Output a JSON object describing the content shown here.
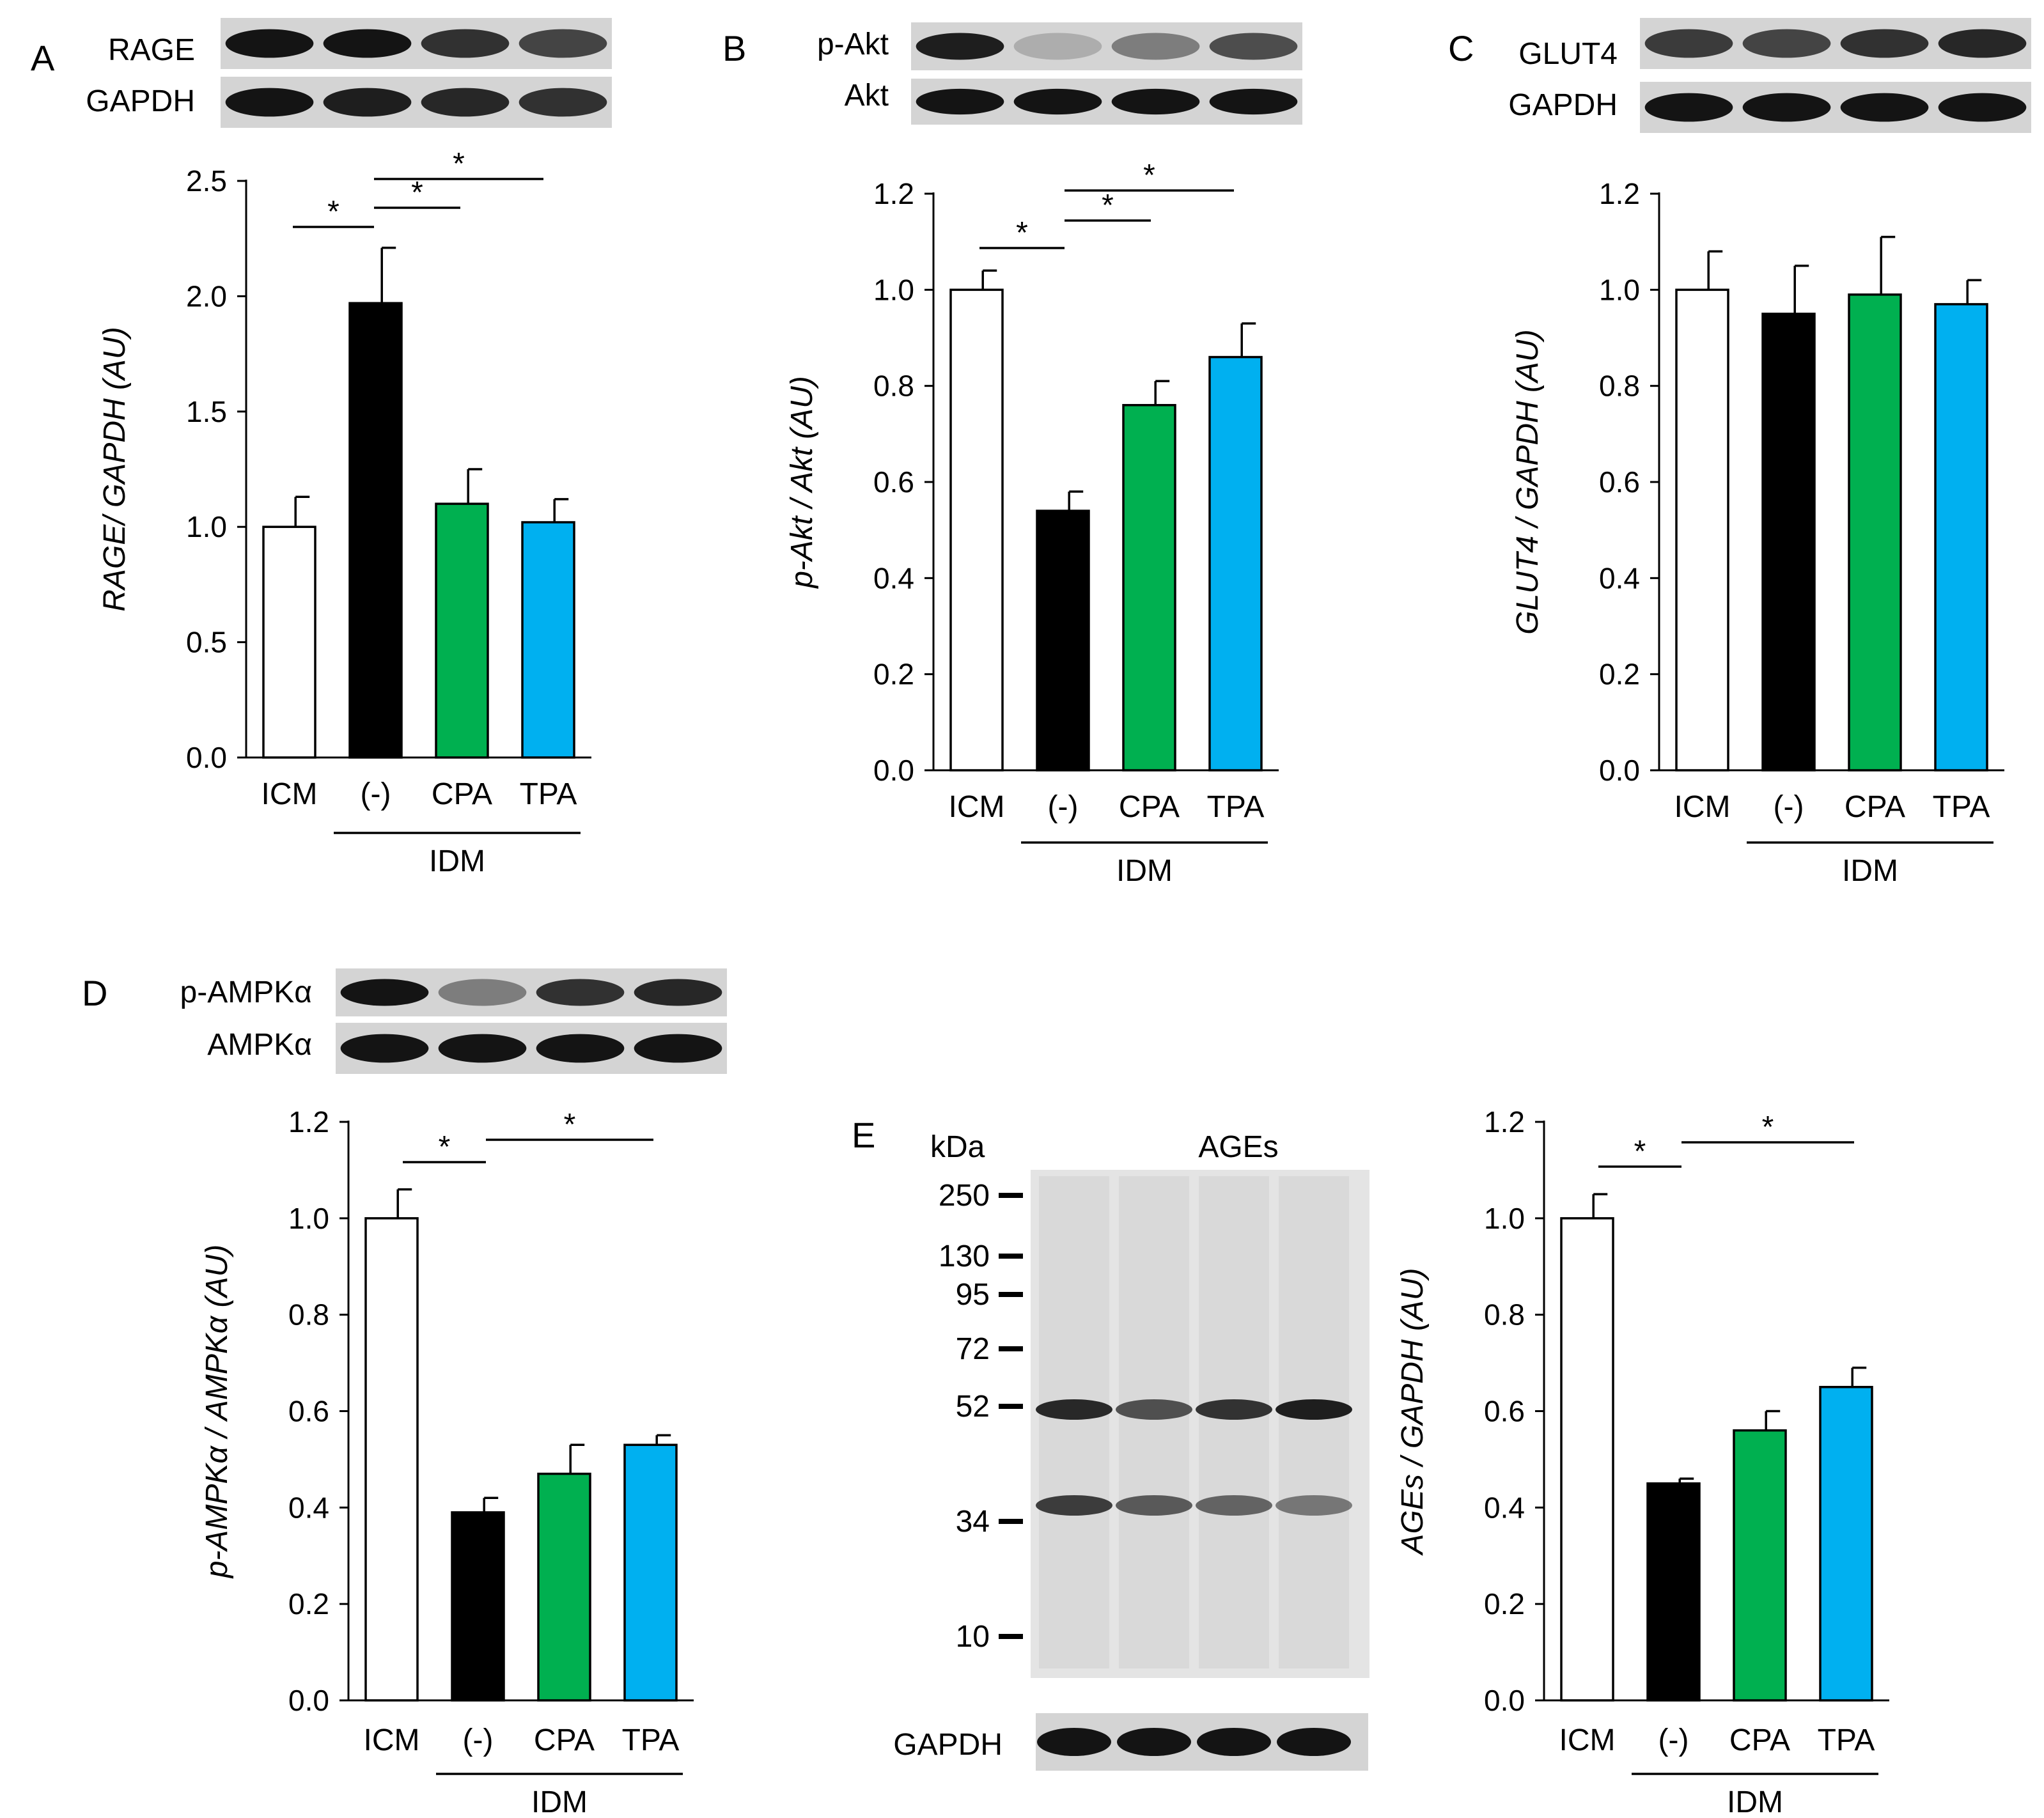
{
  "chart_data": [
    {
      "type": "bar",
      "panel": "A",
      "blots": [
        "RAGE",
        "GAPDH"
      ],
      "ylabel": "RAGE/ GAPDH (AU)",
      "categories": [
        "ICM",
        "(-)",
        "CPA",
        "TPA"
      ],
      "group_label": "IDM",
      "values": [
        1.0,
        1.97,
        1.1,
        1.02
      ],
      "errors": [
        0.13,
        0.24,
        0.15,
        0.1
      ],
      "colors": [
        "#ffffff",
        "#000000",
        "#00b050",
        "#00b0f0"
      ],
      "ylim": [
        0,
        2.5
      ],
      "yticks": [
        "0.0",
        "0.5",
        "1.0",
        "1.5",
        "2.0",
        "2.5"
      ],
      "significance": [
        "*",
        "*",
        "*"
      ]
    },
    {
      "type": "bar",
      "panel": "B",
      "blots": [
        "p-Akt",
        "Akt"
      ],
      "ylabel": "p-Akt / Akt (AU)",
      "categories": [
        "ICM",
        "(-)",
        "CPA",
        "TPA"
      ],
      "group_label": "IDM",
      "values": [
        1.0,
        0.54,
        0.76,
        0.86
      ],
      "errors": [
        0.04,
        0.04,
        0.05,
        0.07
      ],
      "colors": [
        "#ffffff",
        "#000000",
        "#00b050",
        "#00b0f0"
      ],
      "ylim": [
        0,
        1.2
      ],
      "yticks": [
        "0.0",
        "0.2",
        "0.4",
        "0.6",
        "0.8",
        "1.0",
        "1.2"
      ],
      "significance": [
        "*",
        "*",
        "*"
      ]
    },
    {
      "type": "bar",
      "panel": "C",
      "blots": [
        "GLUT4",
        "GAPDH"
      ],
      "ylabel": "GLUT4 / GAPDH (AU)",
      "categories": [
        "ICM",
        "(-)",
        "CPA",
        "TPA"
      ],
      "group_label": "IDM",
      "values": [
        1.0,
        0.95,
        0.99,
        0.97
      ],
      "errors": [
        0.08,
        0.1,
        0.12,
        0.05
      ],
      "colors": [
        "#ffffff",
        "#000000",
        "#00b050",
        "#00b0f0"
      ],
      "ylim": [
        0,
        1.2
      ],
      "yticks": [
        "0.0",
        "0.2",
        "0.4",
        "0.6",
        "0.8",
        "1.0",
        "1.2"
      ],
      "significance": []
    },
    {
      "type": "bar",
      "panel": "D",
      "blots": [
        "p-AMPKα",
        "AMPKα"
      ],
      "ylabel": "p-AMPKα / AMPKα (AU)",
      "categories": [
        "ICM",
        "(-)",
        "CPA",
        "TPA"
      ],
      "group_label": "IDM",
      "values": [
        1.0,
        0.39,
        0.47,
        0.53
      ],
      "errors": [
        0.06,
        0.03,
        0.06,
        0.02
      ],
      "colors": [
        "#ffffff",
        "#000000",
        "#00b050",
        "#00b0f0"
      ],
      "ylim": [
        0,
        1.2
      ],
      "yticks": [
        "0.0",
        "0.2",
        "0.4",
        "0.6",
        "0.8",
        "1.0",
        "1.2"
      ],
      "significance": [
        "*",
        "*"
      ]
    },
    {
      "type": "bar",
      "panel": "E",
      "blot_title": "AGEs",
      "blot_unit": "kDa",
      "markers": [
        "250",
        "130",
        "95",
        "72",
        "52",
        "34",
        "10"
      ],
      "loading_control": "GAPDH",
      "ylabel": "AGEs / GAPDH (AU)",
      "categories": [
        "ICM",
        "(-)",
        "CPA",
        "TPA"
      ],
      "group_label": "IDM",
      "values": [
        1.0,
        0.45,
        0.56,
        0.65
      ],
      "errors": [
        0.05,
        0.01,
        0.04,
        0.04
      ],
      "colors": [
        "#ffffff",
        "#000000",
        "#00b050",
        "#00b0f0"
      ],
      "ylim": [
        0,
        1.2
      ],
      "yticks": [
        "0.0",
        "0.2",
        "0.4",
        "0.6",
        "0.8",
        "1.0",
        "1.2"
      ],
      "significance": [
        "*",
        "*"
      ]
    }
  ]
}
